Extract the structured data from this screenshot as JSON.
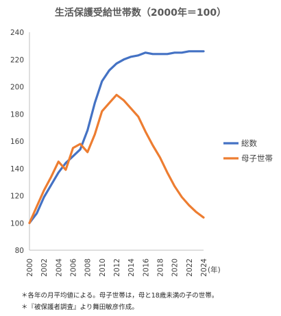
{
  "chart_data": {
    "type": "line",
    "title": "生活保護受給世帯数（2000年＝100）",
    "x_unit_label": "(年)",
    "x": [
      2000,
      2001,
      2002,
      2003,
      2004,
      2005,
      2006,
      2007,
      2008,
      2009,
      2010,
      2011,
      2012,
      2013,
      2014,
      2015,
      2016,
      2017,
      2018,
      2019,
      2020,
      2021,
      2022,
      2023,
      2024
    ],
    "x_tick_labels": [
      "2000",
      "2002",
      "2004",
      "2006",
      "2008",
      "2010",
      "2012",
      "2014",
      "2016",
      "2018",
      "2020",
      "2022",
      "2024"
    ],
    "ylim": [
      80,
      240
    ],
    "y_ticks": [
      80,
      100,
      120,
      140,
      160,
      180,
      200,
      220,
      240
    ],
    "grid": false,
    "legend_position": "right",
    "series": [
      {
        "name": "総数",
        "color": "#4472C4",
        "values": [
          100,
          107,
          119,
          128,
          137,
          144,
          149,
          154,
          168,
          188,
          204,
          212,
          217,
          220,
          222,
          223,
          225,
          224,
          224,
          224,
          225,
          225,
          226,
          226,
          226
        ]
      },
      {
        "name": "母子世帯",
        "color": "#ED7D31",
        "values": [
          100,
          112,
          124,
          134,
          145,
          139,
          155,
          158,
          152,
          165,
          182,
          188,
          194,
          190,
          184,
          178,
          167,
          157,
          148,
          137,
          127,
          119,
          113,
          108,
          104
        ]
      }
    ]
  },
  "notes": [
    "＊各年の月平均値による。母子世帯は，母と18歳未満の子の世帯。",
    "＊『被保護者調査』より舞田敏彦作成。"
  ]
}
